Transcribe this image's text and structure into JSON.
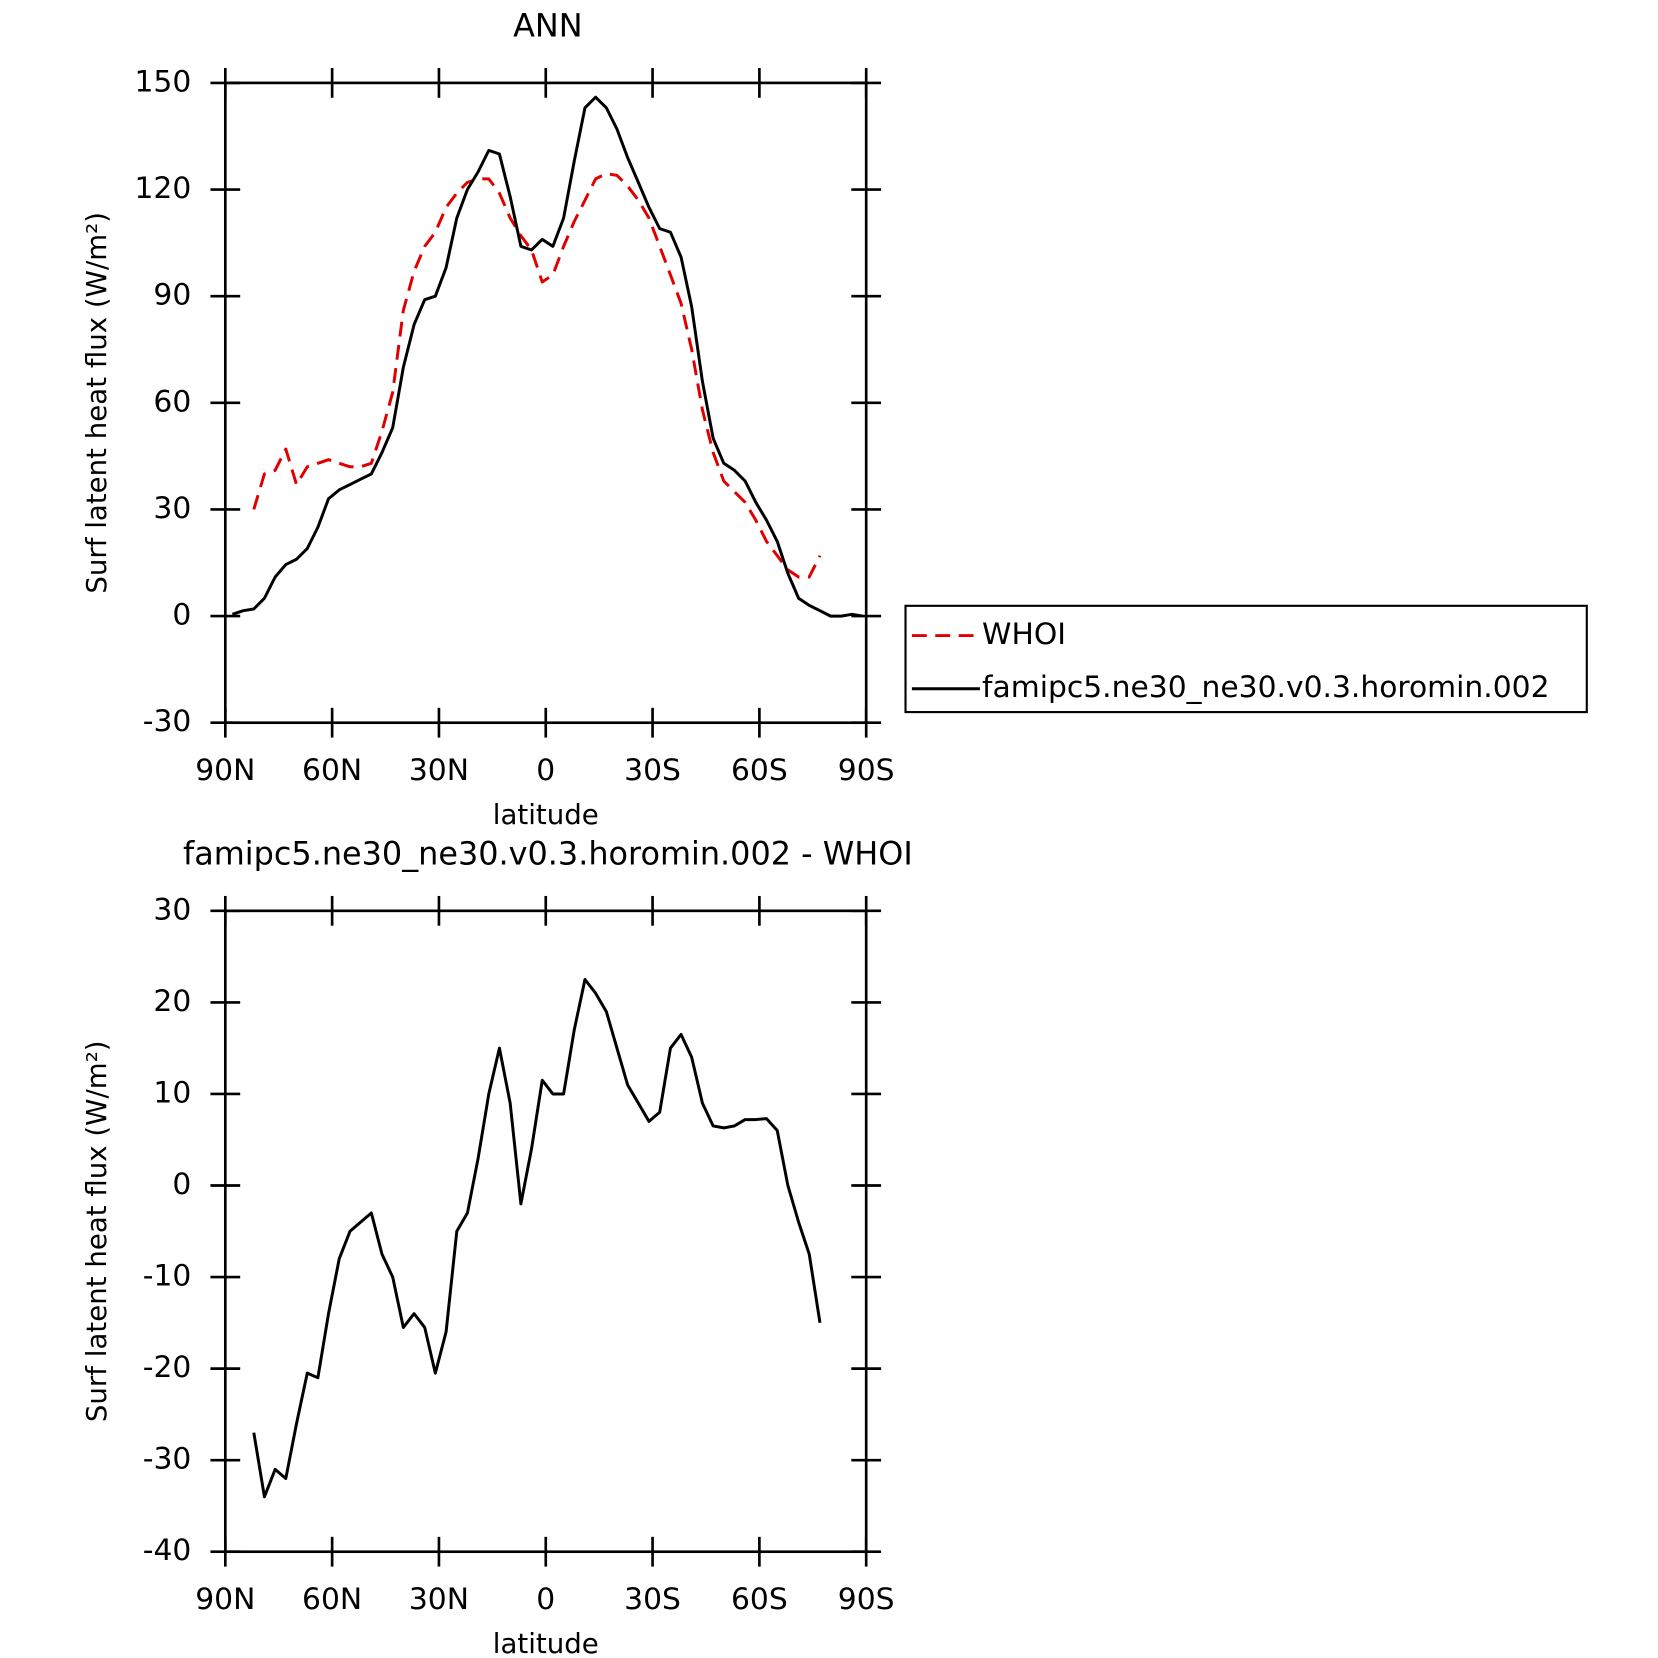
{
  "chart_data": [
    {
      "type": "line",
      "title": "ANN",
      "xlabel": "latitude",
      "ylabel": "Surf latent heat flux (W/m²)",
      "x": [
        88,
        85,
        82,
        79,
        76,
        73,
        70,
        67,
        64,
        61,
        58,
        55,
        52,
        49,
        46,
        43,
        40,
        37,
        34,
        31,
        28,
        25,
        22,
        19,
        16,
        13,
        10,
        7,
        4,
        1,
        -2,
        -5,
        -8,
        -11,
        -14,
        -17,
        -20,
        -23,
        -26,
        -29,
        -32,
        -35,
        -38,
        -41,
        -44,
        -47,
        -50,
        -53,
        -56,
        -59,
        -62,
        -65,
        -68,
        -71,
        -74,
        -77,
        -80,
        -83,
        -86,
        -89
      ],
      "series": [
        {
          "name": "WHOI",
          "color": "#e00000",
          "style": "dashed",
          "values": [
            null,
            null,
            30,
            40,
            41,
            47,
            37,
            42,
            43,
            44,
            43,
            42,
            42,
            43,
            52,
            63,
            86,
            97,
            104,
            108,
            115,
            119,
            122,
            123,
            123,
            119,
            112,
            107,
            103,
            94,
            96,
            104,
            111,
            117,
            123,
            124.5,
            124,
            121,
            117,
            112,
            104,
            96,
            88,
            75,
            58,
            46,
            38,
            35,
            32,
            27,
            21,
            17,
            13,
            11,
            11,
            17,
            null,
            null,
            null,
            null
          ]
        },
        {
          "name": "famipc5.ne30_ne30.v0.3.horomin.002",
          "color": "#000000",
          "style": "solid",
          "values": [
            0.5,
            1.5,
            2,
            5,
            11,
            14.5,
            16,
            19,
            25,
            33,
            35.5,
            37,
            38.5,
            40,
            46,
            53,
            70,
            82,
            89,
            90,
            98,
            112,
            120,
            125,
            131,
            130,
            118,
            104,
            103,
            106,
            104,
            112,
            128,
            143,
            146,
            143,
            137,
            129,
            122,
            115,
            109,
            108,
            101,
            87,
            66,
            50,
            43,
            41,
            38,
            32,
            27,
            21,
            12,
            5,
            3,
            1.5,
            0,
            0,
            0.5,
            0
          ]
        }
      ],
      "xlim": [
        90,
        -90
      ],
      "xticks": [
        {
          "value": 90,
          "label": "90N"
        },
        {
          "value": 60,
          "label": "60N"
        },
        {
          "value": 30,
          "label": "30N"
        },
        0,
        {
          "value": -30,
          "label": "30S"
        },
        {
          "value": -60,
          "label": "60S"
        },
        {
          "value": -90,
          "label": "90S"
        }
      ],
      "ylim": [
        -30,
        150
      ],
      "yticks": [
        -30,
        0,
        30,
        60,
        90,
        120,
        150
      ],
      "legend": "right"
    },
    {
      "type": "line",
      "title": "famipc5.ne30_ne30.v0.3.horomin.002 - WHOI",
      "xlabel": "latitude",
      "ylabel": "Surf latent heat flux (W/m²)",
      "x": [
        82,
        79,
        76,
        73,
        70,
        67,
        64,
        61,
        58,
        55,
        52,
        49,
        46,
        43,
        40,
        37,
        34,
        31,
        28,
        25,
        22,
        19,
        16,
        13,
        10,
        7,
        4,
        1,
        -2,
        -5,
        -8,
        -11,
        -14,
        -17,
        -20,
        -23,
        -26,
        -29,
        -32,
        -35,
        -38,
        -41,
        -44,
        -47,
        -50,
        -53,
        -56,
        -59,
        -62,
        -65,
        -68,
        -71,
        -74,
        -77
      ],
      "color": "#000000",
      "values": [
        -27,
        -34,
        -31,
        -32,
        -26,
        -20.5,
        -21,
        -14,
        -8,
        -5,
        -4,
        -3,
        -7.5,
        -10,
        -15.5,
        -14,
        -15.5,
        -20.5,
        -16,
        -5,
        -3,
        3,
        10,
        15,
        9,
        -2,
        4,
        11.5,
        10,
        10,
        17,
        22.5,
        21,
        19,
        15,
        11,
        9,
        7,
        8,
        15,
        16.5,
        14,
        9,
        6.5,
        6.3,
        6.5,
        7.2,
        7.2,
        7.3,
        6,
        0,
        -4,
        -7.5,
        -15
      ],
      "xlim": [
        90,
        -90
      ],
      "xticks": [
        {
          "value": 90,
          "label": "90N"
        },
        {
          "value": 60,
          "label": "60N"
        },
        {
          "value": 30,
          "label": "30N"
        },
        0,
        {
          "value": -30,
          "label": "30S"
        },
        {
          "value": -60,
          "label": "60S"
        },
        {
          "value": -90,
          "label": "90S"
        }
      ],
      "ylim": [
        -40,
        30
      ],
      "yticks": [
        -40,
        -30,
        -20,
        -10,
        0,
        10,
        20,
        30
      ]
    }
  ]
}
